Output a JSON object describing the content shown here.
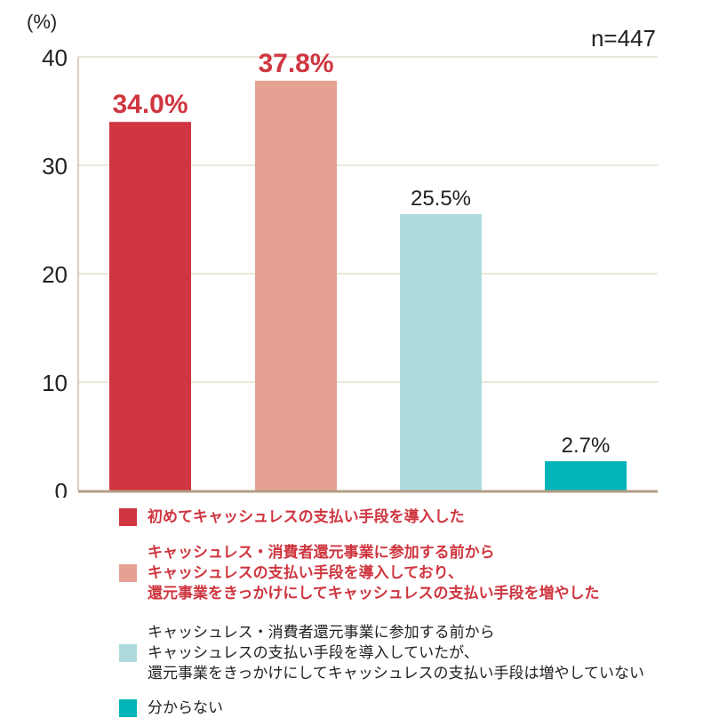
{
  "chart_data": {
    "type": "bar",
    "ylabel": "(%)",
    "annotation": "n=447",
    "ylim": [
      0,
      40
    ],
    "yticks": [
      0,
      10,
      20,
      30,
      40
    ],
    "grid": true,
    "legend_placement": "bottom",
    "categories": [
      "初めてキャッシュレスの支払い手段を導入した",
      "キャッシュレス・消費者還元事業に参加する前からキャッシュレスの支払い手段を導入しており、還元事業をきっかけにしてキャッシュレスの支払い手段を増やした",
      "キャッシュレス・消費者還元事業に参加する前からキャッシュレスの支払い手段を導入していたが、還元事業をきっかけにしてキャッシュレスの支払い手段は増やしていない",
      "分からない"
    ],
    "values": [
      34.0,
      37.8,
      25.5,
      2.7
    ],
    "data_labels": [
      "34.0%",
      "37.8%",
      "25.5%",
      "2.7%"
    ],
    "colors": [
      "#cf3640",
      "#e5a292",
      "#aedadc",
      "#00b4b8"
    ],
    "label_colors": [
      "#cf3640",
      "#cf3640",
      "#222222",
      "#222222"
    ],
    "gridline_color": "#d9cdb8",
    "axis_color": "#b39c84"
  },
  "legend": [
    {
      "lines": [
        "初めてキャッシュレスの支払い手段を導入した"
      ],
      "color": "#cf3640",
      "bold": true
    },
    {
      "lines": [
        "キャッシュレス・消費者還元事業に参加する前から",
        "キャッシュレスの支払い手段を導入しており、",
        "還元事業をきっかけにしてキャッシュレスの支払い手段を増やした"
      ],
      "color": "#e5a292",
      "bold": true
    },
    {
      "lines": [
        "キャッシュレス・消費者還元事業に参加する前から",
        "キャッシュレスの支払い手段を導入していたが、",
        "還元事業をきっかけにしてキャッシュレスの支払い手段は増やしていない"
      ],
      "color": "#aedadc",
      "bold": false
    },
    {
      "lines": [
        "分からない"
      ],
      "color": "#00b4b8",
      "bold": false
    }
  ]
}
